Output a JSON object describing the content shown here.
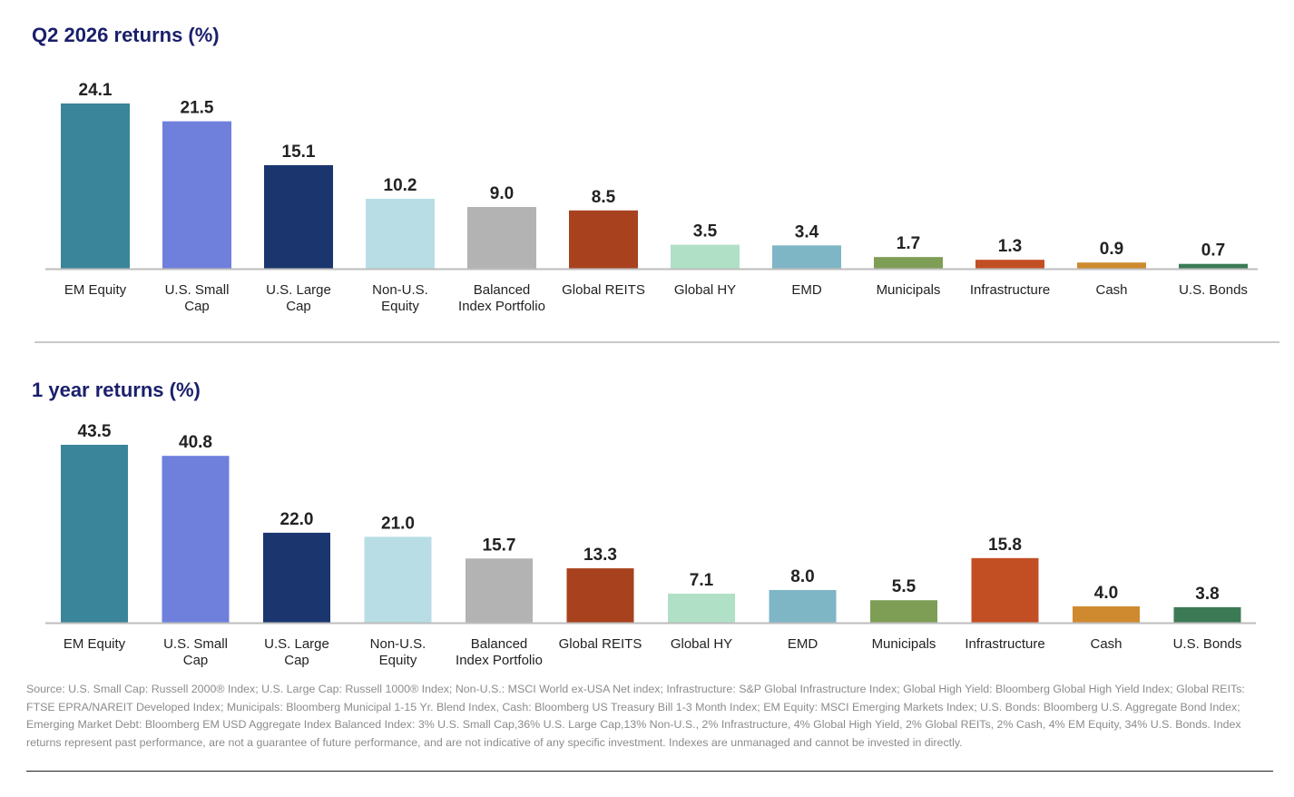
{
  "chart_data": [
    {
      "type": "bar",
      "title": "Q2 2026 returns (%)",
      "categories": [
        "EM Equity",
        "U.S. Small Cap",
        "U.S. Large Cap",
        "Non-U.S. Equity",
        "Balanced Index Portfolio",
        "Global REITS",
        "Global HY",
        "EMD",
        "Municipals",
        "Infrastructure",
        "Cash",
        "U.S. Bonds"
      ],
      "category_lines": [
        [
          "EM Equity"
        ],
        [
          "U.S. Small",
          "Cap"
        ],
        [
          "U.S. Large",
          "Cap"
        ],
        [
          "Non-U.S.",
          "Equity"
        ],
        [
          "Balanced",
          "Index Portfolio"
        ],
        [
          "Global REITS"
        ],
        [
          "Global HY"
        ],
        [
          "EMD"
        ],
        [
          "Municipals"
        ],
        [
          "Infrastructure"
        ],
        [
          "Cash"
        ],
        [
          "U.S. Bonds"
        ]
      ],
      "values": [
        24.1,
        21.5,
        15.1,
        10.2,
        9.0,
        8.5,
        3.5,
        3.4,
        1.7,
        1.3,
        0.9,
        0.7
      ],
      "value_labels": [
        "24.1",
        "21.5",
        "15.1",
        "10.2",
        "9.0",
        "8.5",
        "3.5",
        "3.4",
        "1.7",
        "1.3",
        "0.9",
        "0.7"
      ],
      "colors": [
        "#3a8599",
        "#6f80dc",
        "#1b366e",
        "#b8dde5",
        "#b3b3b3",
        "#a8421e",
        "#b0e0c6",
        "#7fb6c6",
        "#7e9e55",
        "#c24f23",
        "#cf8a2f",
        "#3c7a55"
      ],
      "ylim": [
        0,
        24.1
      ],
      "grid": false,
      "legend": "none"
    },
    {
      "type": "bar",
      "title": "1 year returns (%)",
      "categories": [
        "EM Equity",
        "U.S. Small Cap",
        "U.S. Large Cap",
        "Non-U.S. Equity",
        "Balanced Index Portfolio",
        "Global REITS",
        "Global HY",
        "EMD",
        "Municipals",
        "Infrastructure",
        "Cash",
        "U.S. Bonds"
      ],
      "category_lines": [
        [
          "EM Equity"
        ],
        [
          "U.S. Small",
          "Cap"
        ],
        [
          "U.S. Large",
          "Cap"
        ],
        [
          "Non-U.S.",
          "Equity"
        ],
        [
          "Balanced",
          "Index Portfolio"
        ],
        [
          "Global REITS"
        ],
        [
          "Global HY"
        ],
        [
          "EMD"
        ],
        [
          "Municipals"
        ],
        [
          "Infrastructure"
        ],
        [
          "Cash"
        ],
        [
          "U.S. Bonds"
        ]
      ],
      "values": [
        43.5,
        40.8,
        22.0,
        21.0,
        15.7,
        13.3,
        7.1,
        8.0,
        5.5,
        15.8,
        4.0,
        3.8
      ],
      "value_labels": [
        "43.5",
        "40.8",
        "22.0",
        "21.0",
        "15.7",
        "13.3",
        "7.1",
        "8.0",
        "5.5",
        "15.8",
        "4.0",
        "3.8"
      ],
      "colors": [
        "#3a8599",
        "#6f80dc",
        "#1b366e",
        "#b8dde5",
        "#b3b3b3",
        "#a8421e",
        "#b0e0c6",
        "#7fb6c6",
        "#7e9e55",
        "#c24f23",
        "#cf8a2f",
        "#3c7a55"
      ],
      "ylim": [
        0,
        43.5
      ],
      "grid": false,
      "legend": "none"
    }
  ],
  "source_note": "Source: U.S. Small Cap: Russell 2000® Index; U.S. Large Cap: Russell 1000® Index; Non-U.S.: MSCI World ex-USA Net index; Infrastructure: S&P Global Infrastructure Index; Global High Yield: Bloomberg Global High Yield Index; Global REITs: FTSE EPRA/NAREIT Developed Index; Municipals: Bloomberg Municipal 1-15 Yr. Blend Index, Cash: Bloomberg US Treasury Bill 1-3 Month Index; EM Equity: MSCI Emerging Markets Index; U.S. Bonds: Bloomberg U.S. Aggregate Bond Index; Emerging Market Debt: Bloomberg EM USD Aggregate Index Balanced Index: 3% U.S. Small Cap,36% U.S. Large Cap,13% Non-U.S., 2% Infrastructure, 4% Global High Yield, 2% Global REITs, 2% Cash, 4% EM Equity, 34% U.S. Bonds. Index returns represent past performance, are not a guarantee of future performance, and are not indicative of any specific investment. Indexes are unmanaged and cannot be invested in directly."
}
